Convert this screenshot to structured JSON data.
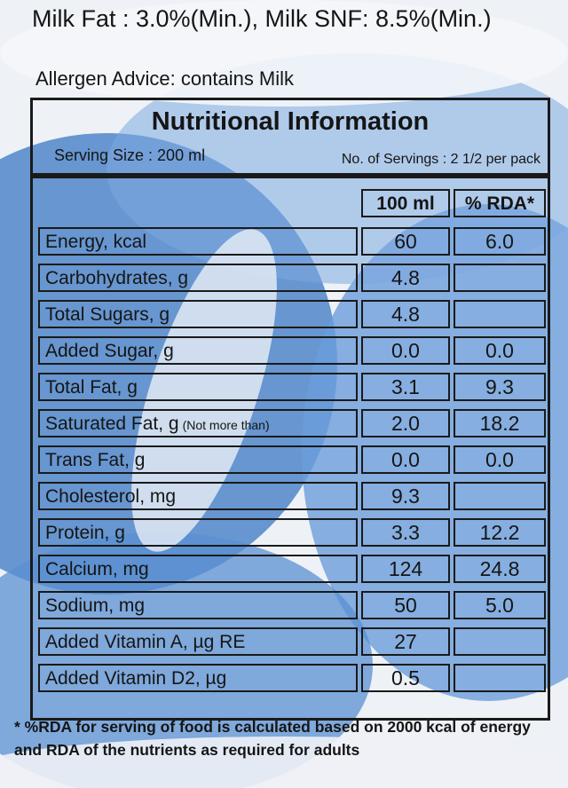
{
  "label": {
    "milk_fat": "Milk Fat : 3.0%(Min.), Milk SNF: 8.5%(Min.)",
    "allergen": "Allergen Advice: contains Milk",
    "table_title": "Nutritional Information",
    "serving_size": "Serving Size : 200 ml",
    "servings": "No. of Servings : 2 1/2 per pack",
    "col_100ml": "100 ml",
    "col_rda": "% RDA*",
    "rows": [
      {
        "name": "Energy, kcal",
        "qualifier": "",
        "value": "60",
        "rda": "6.0"
      },
      {
        "name": "Carbohydrates, g",
        "qualifier": "",
        "value": "4.8",
        "rda": ""
      },
      {
        "name": "Total Sugars, g",
        "qualifier": "",
        "value": "4.8",
        "rda": ""
      },
      {
        "name": "Added Sugar, g",
        "qualifier": "",
        "value": "0.0",
        "rda": "0.0"
      },
      {
        "name": "Total Fat, g",
        "qualifier": "",
        "value": "3.1",
        "rda": "9.3"
      },
      {
        "name": "Saturated Fat, g",
        "qualifier": "(Not more than)",
        "value": "2.0",
        "rda": "18.2"
      },
      {
        "name": "Trans Fat, g",
        "qualifier": "",
        "value": "0.0",
        "rda": "0.0"
      },
      {
        "name": "Cholesterol, mg",
        "qualifier": "",
        "value": "9.3",
        "rda": ""
      },
      {
        "name": "Protein, g",
        "qualifier": "",
        "value": "3.3",
        "rda": "12.2"
      },
      {
        "name": "Calcium, mg",
        "qualifier": "",
        "value": "124",
        "rda": "24.8"
      },
      {
        "name": "Sodium, mg",
        "qualifier": "",
        "value": "50",
        "rda": "5.0"
      },
      {
        "name": "Added Vitamin A, µg RE",
        "qualifier": "",
        "value": "27",
        "rda": ""
      },
      {
        "name": "Added Vitamin D2, µg",
        "qualifier": "",
        "value": "0.5",
        "rda": ""
      }
    ],
    "footnote": "* %RDA  for serving of food is calculated based on 2000 kcal of energy and RDA of the nutrients as required for adults"
  },
  "colors": {
    "pack_blue": "#4f86c9",
    "ink": "#151515"
  }
}
